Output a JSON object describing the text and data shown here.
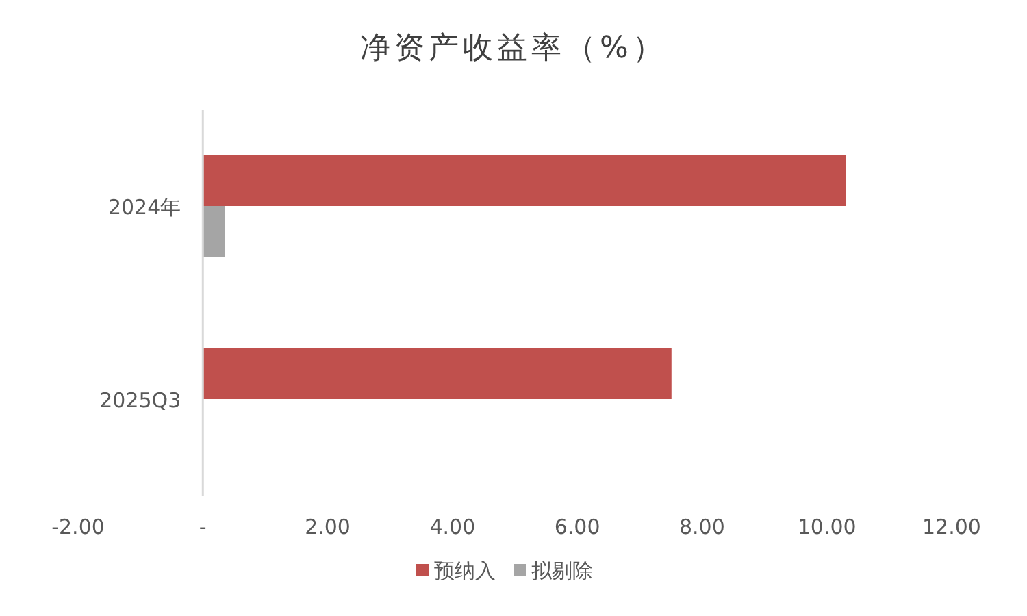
{
  "chart_data": {
    "type": "bar",
    "orientation": "horizontal",
    "title": "净资产收益率（%）",
    "categories": [
      "2024年",
      "2025Q3"
    ],
    "series": [
      {
        "name": "预纳入",
        "color": "#c0504d",
        "values": [
          10.31,
          7.51
        ]
      },
      {
        "name": "拟剔除",
        "color": "#a5a5a5",
        "values": [
          0.35,
          null
        ]
      }
    ],
    "xlim": [
      -2,
      12
    ],
    "xticks": [
      {
        "value": -2,
        "label": "-2.00"
      },
      {
        "value": 0,
        "label": "-"
      },
      {
        "value": 2,
        "label": "2.00"
      },
      {
        "value": 4,
        "label": "4.00"
      },
      {
        "value": 6,
        "label": "6.00"
      },
      {
        "value": 8,
        "label": "8.00"
      },
      {
        "value": 10,
        "label": "10.00"
      },
      {
        "value": 12,
        "label": "12.00"
      }
    ],
    "legend": "bottom",
    "grid": false
  }
}
